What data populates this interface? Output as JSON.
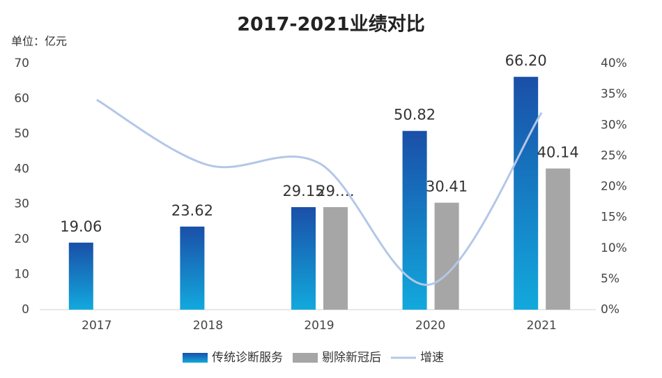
{
  "chart_data": {
    "type": "bar_line",
    "title": "2017-2021业绩对比",
    "y_label": "单位：亿元",
    "categories": [
      "2017",
      "2018",
      "2019",
      "2020",
      "2021"
    ],
    "ylim": [
      0,
      70
    ],
    "yticks": [
      0,
      10,
      20,
      30,
      40,
      50,
      60,
      70
    ],
    "y2lim": [
      0,
      40
    ],
    "y2ticks": [
      {
        "value": 0,
        "label": "0%"
      },
      {
        "value": 5,
        "label": "5%"
      },
      {
        "value": 10,
        "label": "10%"
      },
      {
        "value": 15,
        "label": "15%"
      },
      {
        "value": 20,
        "label": "20%"
      },
      {
        "value": 25,
        "label": "25%"
      },
      {
        "value": 30,
        "label": "30%"
      },
      {
        "value": 35,
        "label": "35%"
      },
      {
        "value": 40,
        "label": "40%"
      }
    ],
    "series": [
      {
        "name": "传统诊断服务",
        "type": "bar",
        "color": "#1a55aa",
        "values": [
          19.06,
          23.62,
          29.15,
          50.82,
          66.2
        ],
        "value_labels": [
          "19.06",
          "23.62",
          "29.15",
          "50.82",
          "66.20"
        ]
      },
      {
        "name": "剔除新冠后",
        "type": "bar",
        "color": "#a6a6a6",
        "values": [
          null,
          null,
          29.15,
          30.41,
          40.14
        ],
        "value_labels": [
          null,
          null,
          "29.…",
          "30.41",
          "40.14"
        ]
      },
      {
        "name": "增速",
        "type": "line",
        "axis": "y2",
        "color": "#b4c7e7",
        "values": [
          34.1,
          23.5,
          23.8,
          4.1,
          32.0
        ]
      }
    ]
  }
}
